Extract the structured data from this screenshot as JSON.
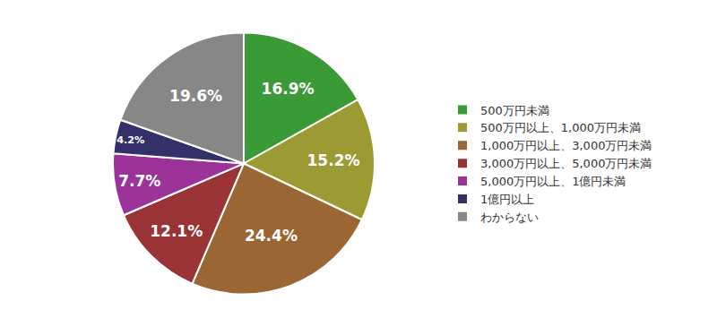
{
  "chart_data": {
    "type": "pie",
    "categories": [
      "500万円未満",
      "500万円以上、1,000万円未満",
      "1,000万円以上、3,000万円未満",
      "3,000万円以上、5,000万円未満",
      "5,000万円以上、1億円未満",
      "1億円以上",
      "わからない"
    ],
    "values": [
      16.9,
      15.2,
      24.4,
      12.1,
      7.7,
      4.2,
      19.6
    ],
    "value_labels": [
      "16.9%",
      "15.2%",
      "24.4%",
      "12.1%",
      "7.7%",
      "4.2%",
      "19.6%"
    ],
    "colors": [
      "#3a9a35",
      "#9b9a33",
      "#9a6633",
      "#9a3335",
      "#9b3399",
      "#34306a",
      "#878787"
    ],
    "data_labels": true,
    "legend": "right"
  }
}
